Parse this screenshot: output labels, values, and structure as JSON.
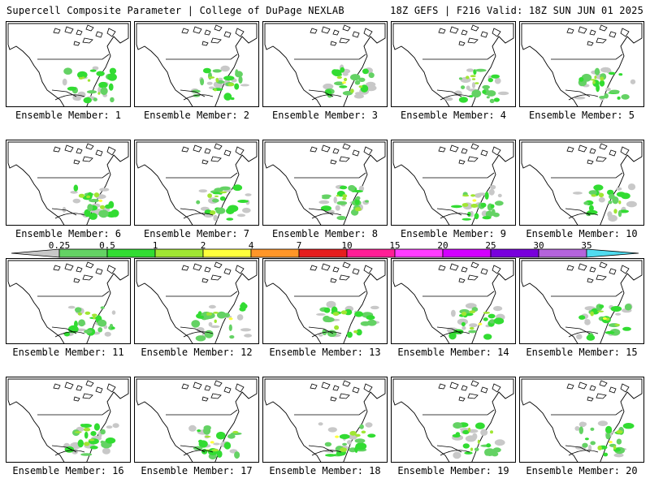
{
  "header": {
    "left": "Supercell Composite Parameter | College of DuPage NEXLAB",
    "right": "18Z GEFS | F216 Valid: 18Z SUN JUN 01 2025"
  },
  "legend": {
    "labels": [
      "0.25",
      "0.5",
      "1",
      "2",
      "4",
      "7",
      "10",
      "15",
      "20",
      "25",
      "30",
      "35"
    ],
    "colors": [
      "#c8c8c8",
      "#64d264",
      "#32dc32",
      "#a0e632",
      "#ffff3c",
      "#ff9628",
      "#e61e1e",
      "#ff1e96",
      "#ff3cff",
      "#d200ff",
      "#7800dc",
      "#b464dc",
      "#50dcf0"
    ]
  },
  "panels": [
    {
      "label": "Ensemble Member: 1"
    },
    {
      "label": "Ensemble Member: 2"
    },
    {
      "label": "Ensemble Member: 3"
    },
    {
      "label": "Ensemble Member: 4"
    },
    {
      "label": "Ensemble Member: 5"
    },
    {
      "label": "Ensemble Member: 6"
    },
    {
      "label": "Ensemble Member: 7"
    },
    {
      "label": "Ensemble Member: 8"
    },
    {
      "label": "Ensemble Member: 9"
    },
    {
      "label": "Ensemble Member: 10"
    },
    {
      "label": "Ensemble Member: 11"
    },
    {
      "label": "Ensemble Member: 12"
    },
    {
      "label": "Ensemble Member: 13"
    },
    {
      "label": "Ensemble Member: 14"
    },
    {
      "label": "Ensemble Member: 15"
    },
    {
      "label": "Ensemble Member: 16"
    },
    {
      "label": "Ensemble Member: 17"
    },
    {
      "label": "Ensemble Member: 18"
    },
    {
      "label": "Ensemble Member: 19"
    },
    {
      "label": "Ensemble Member: 20"
    }
  ]
}
